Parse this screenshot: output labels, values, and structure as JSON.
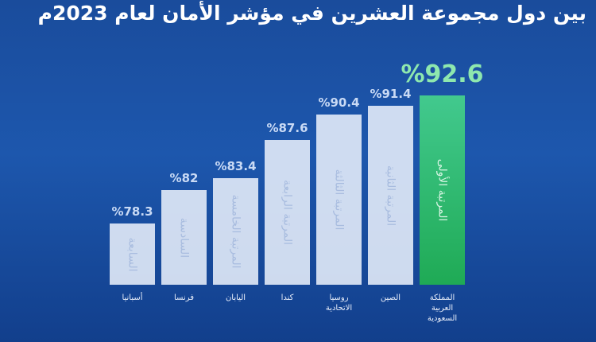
{
  "chart_data": {
    "type": "bar",
    "title": "بين دول مجموعة العشرين في مؤشر الأمان لعام 2023م",
    "categories": [
      "أسبانيا",
      "فرنسا",
      "اليابان",
      "كندا",
      "روسيا\nالاتحادية",
      "الصين",
      "المملكة\nالعربية\nالسعودية"
    ],
    "values": [
      78.3,
      82,
      83.4,
      87.6,
      90.4,
      91.4,
      92.6
    ],
    "value_labels": [
      "%78.3",
      "%82",
      "%83.4",
      "%87.6",
      "%90.4",
      "%91.4",
      "%92.6"
    ],
    "ranks": [
      "السابعة",
      "السادسة",
      "المرتبة الخامسة",
      "المرتبة الرابعة",
      "المرتبة الثالثة",
      "المرتبة الثانية",
      "المرتبة الأولى"
    ],
    "highlight": 6,
    "ylim": [
      71.5,
      93
    ]
  }
}
